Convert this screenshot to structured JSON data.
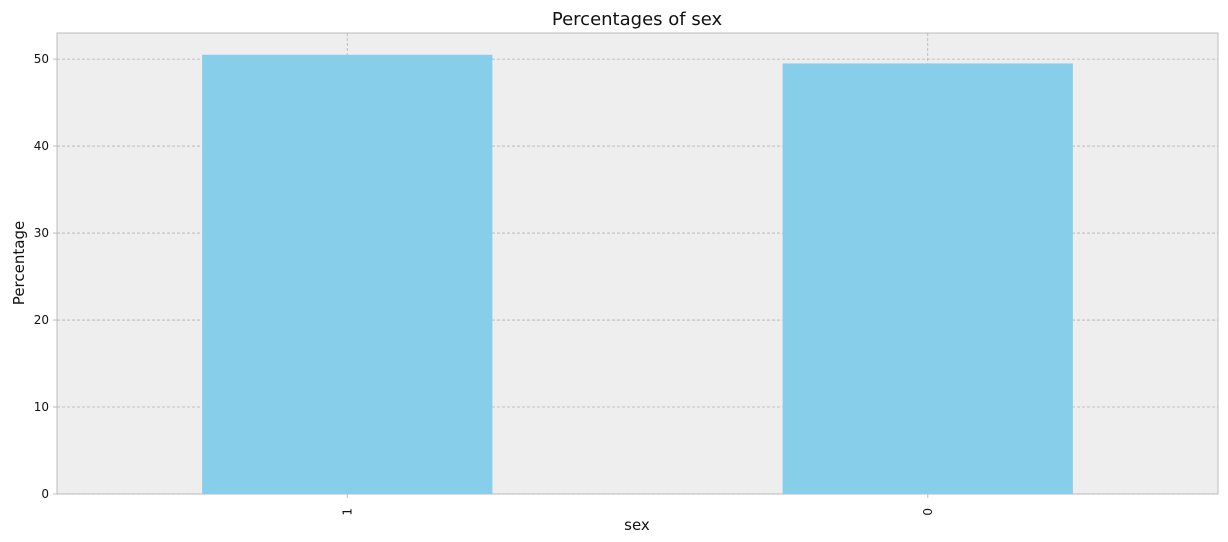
{
  "chart_data": {
    "type": "bar",
    "title": "Percentages of sex",
    "xlabel": "sex",
    "ylabel": "Percentage",
    "categories": [
      "1",
      "0"
    ],
    "values": [
      50.5,
      49.5
    ],
    "ylim": [
      0,
      53
    ],
    "yticks": [
      0,
      10,
      20,
      30,
      40,
      50
    ],
    "grid": true,
    "bar_color": "#87ceeb",
    "plot_background": "#eeeeee",
    "x_tick_rotation": "vertical"
  }
}
